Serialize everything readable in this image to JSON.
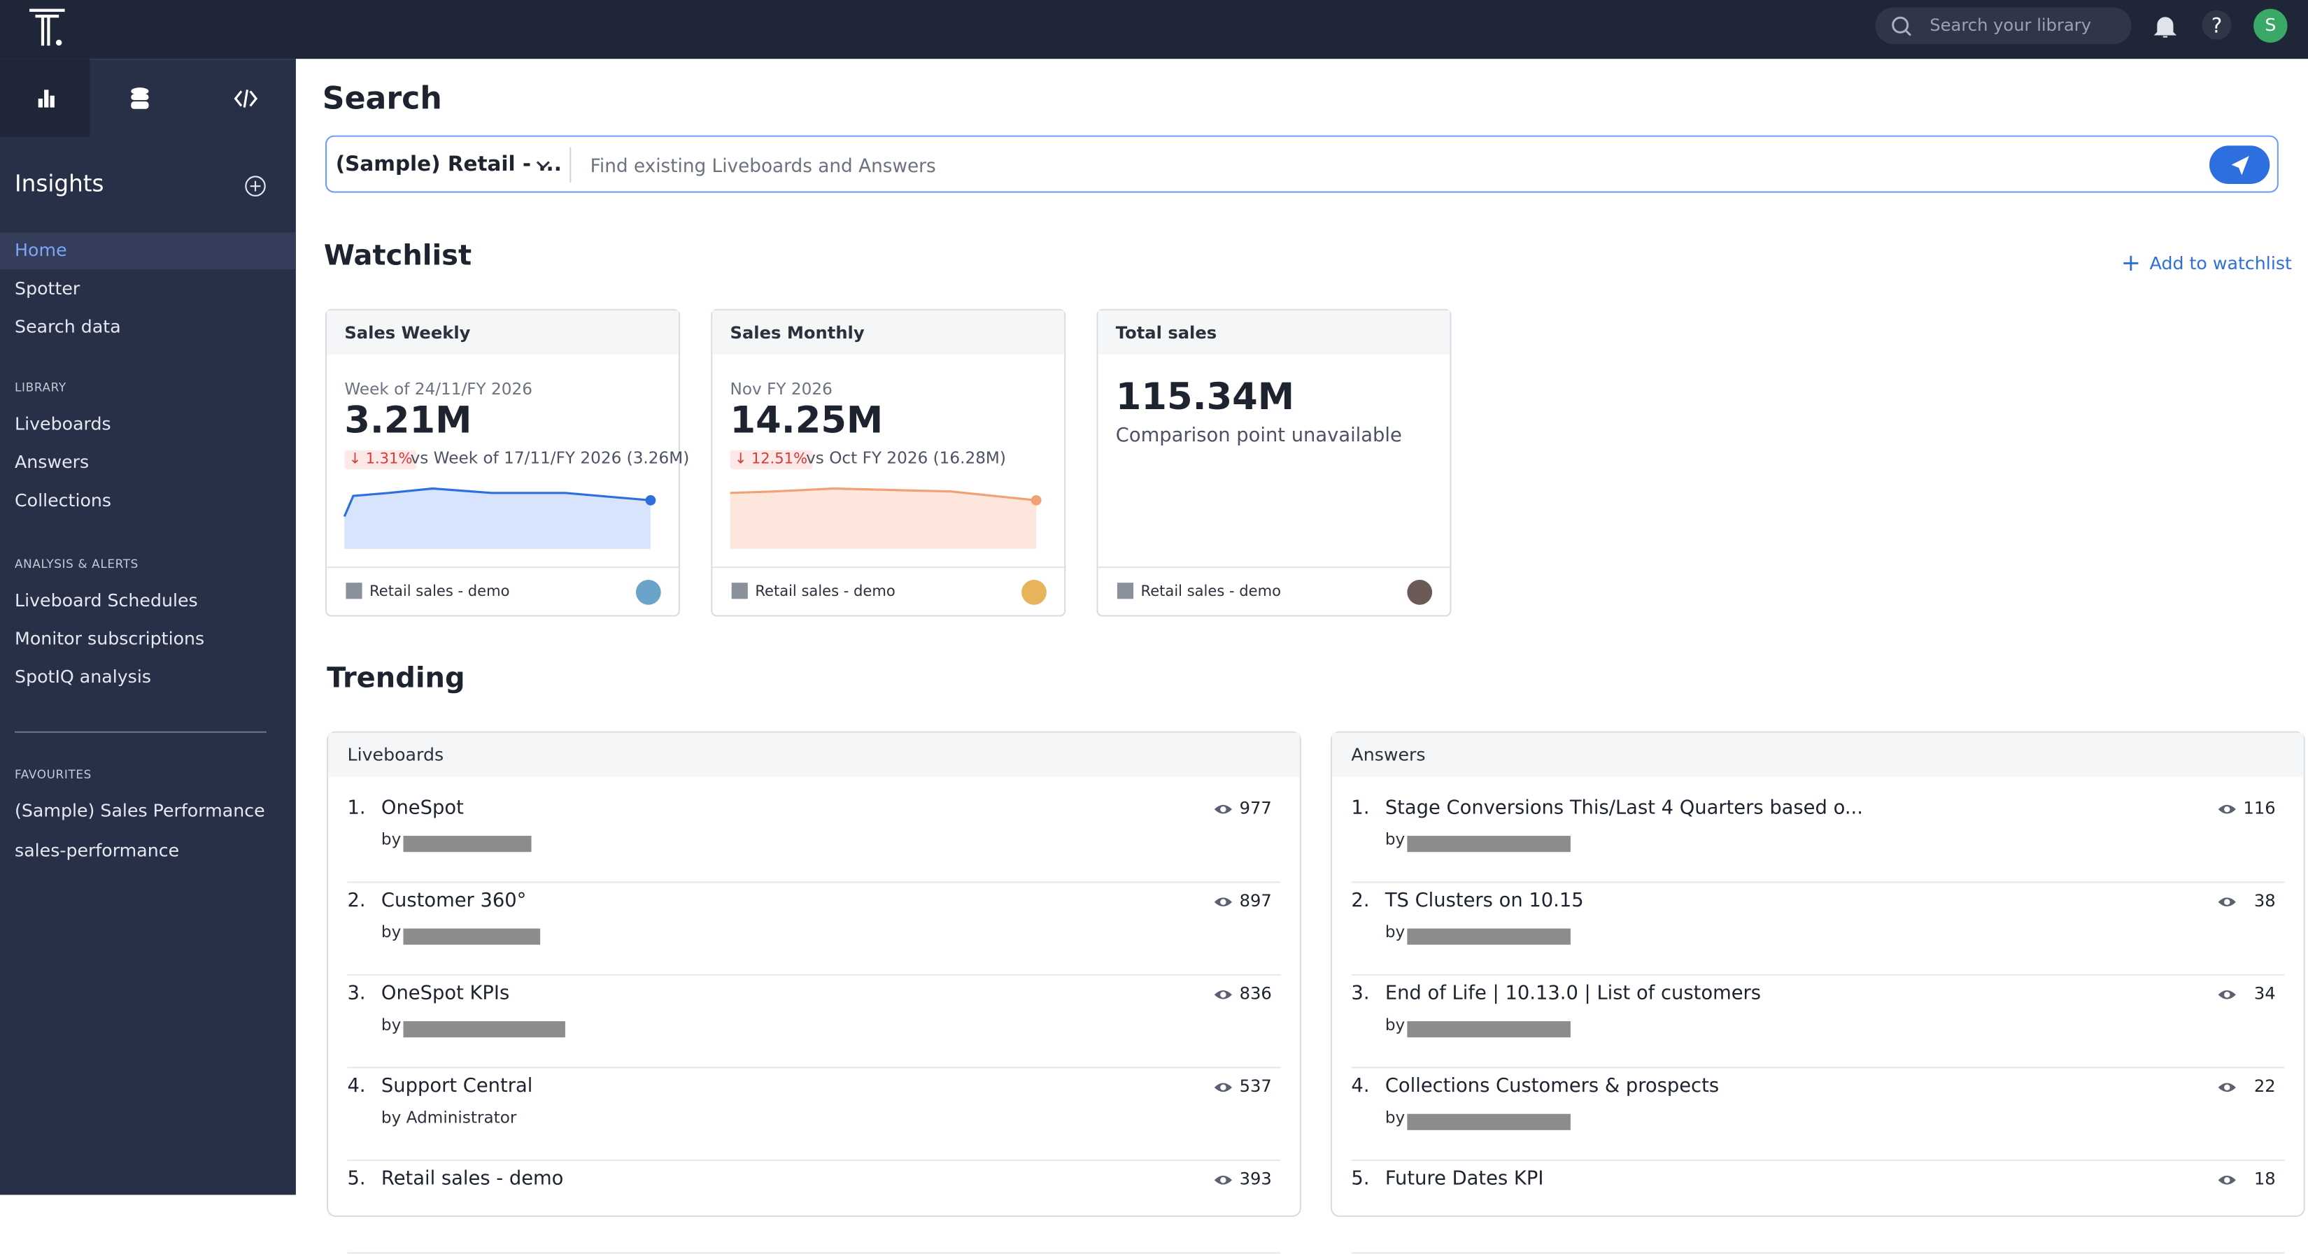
{
  "topbar": {
    "search_placeholder": "Search your library",
    "avatar": "S"
  },
  "sidebar": {
    "title": "Insights",
    "nav": [
      "Home",
      "Spotter",
      "Search data"
    ],
    "sections": [
      {
        "heading": "LIBRARY",
        "items": [
          "Liveboards",
          "Answers",
          "Collections"
        ]
      },
      {
        "heading": "ANALYSIS & ALERTS",
        "items": [
          "Liveboard Schedules",
          "Monitor subscriptions",
          "SpotIQ analysis"
        ]
      },
      {
        "heading": "FAVOURITES",
        "items": [
          "(Sample) Sales Performance",
          "sales-performance"
        ]
      }
    ]
  },
  "main": {
    "title": "Search",
    "source": "(Sample) Retail - ...",
    "search_placeholder": "Find existing Liveboards and Answers",
    "watchlist": {
      "title": "Watchlist",
      "add": "Add to watchlist",
      "cards": [
        {
          "title": "Sales Weekly",
          "period": "Week of 24/11/FY 2026",
          "value": "3.21M",
          "change": "1.31%",
          "comparison": "vs Week of 17/11/FY 2026 (3.26M)",
          "source": "Retail sales - demo"
        },
        {
          "title": "Sales Monthly",
          "period": "Nov FY 2026",
          "value": "14.25M",
          "change": "12.51%",
          "comparison": "vs Oct FY 2026 (16.28M)",
          "source": "Retail sales - demo"
        },
        {
          "title": "Total sales",
          "value": "115.34M",
          "comparison": "Comparison point unavailable",
          "source": "Retail sales - demo"
        }
      ]
    },
    "trending": {
      "title": "Trending",
      "lists": [
        {
          "title": "Liveboards",
          "items": [
            {
              "rank": "1.",
              "name": "OneSpot",
              "by": "by",
              "views": 977
            },
            {
              "rank": "2.",
              "name": "Customer 360°",
              "by": "by",
              "views": 897
            },
            {
              "rank": "3.",
              "name": "OneSpot KPIs",
              "by": "by",
              "views": 836
            },
            {
              "rank": "4.",
              "name": "Support Central",
              "by": "by Administrator",
              "views": 537
            },
            {
              "rank": "5.",
              "name": "Retail sales - demo",
              "views": 393
            }
          ]
        },
        {
          "title": "Answers",
          "items": [
            {
              "rank": "1.",
              "name": "Stage Conversions This/Last 4 Quarters based o...",
              "by": "by",
              "views": 116
            },
            {
              "rank": "2.",
              "name": "TS Clusters on 10.15",
              "by": "by",
              "views": 38
            },
            {
              "rank": "3.",
              "name": "End of Life | 10.13.0 | List of customers",
              "by": "by",
              "views": 34
            },
            {
              "rank": "4.",
              "name": "Collections Customers & prospects",
              "by": "by",
              "views": 22
            },
            {
              "rank": "5.",
              "name": "Future Dates KPI",
              "views": 18
            }
          ]
        }
      ]
    }
  }
}
